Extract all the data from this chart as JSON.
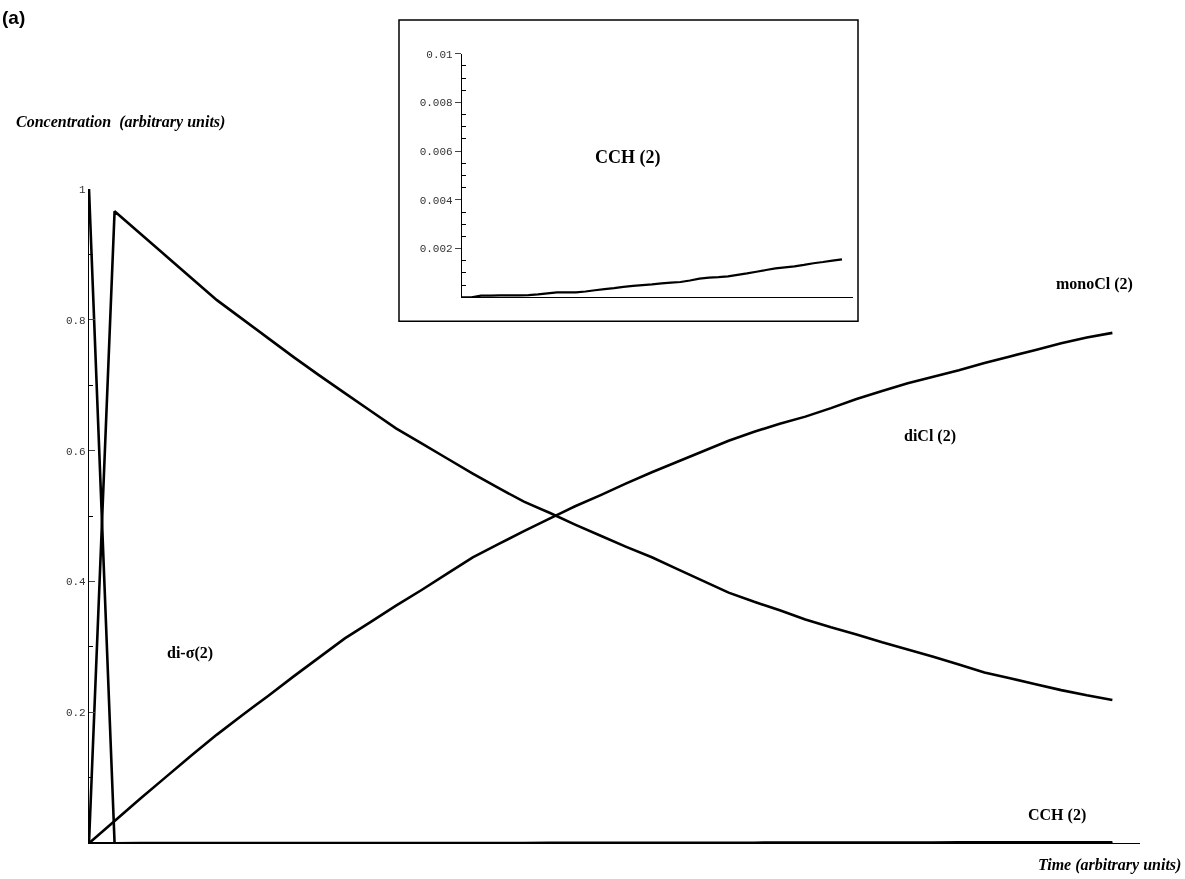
{
  "chart_data": [
    {
      "type": "line",
      "title": "(a)",
      "xlabel": "Time (arbitrary units)",
      "ylabel": "Concentration  (arbitrary units)",
      "categories": [
        null,
        null,
        null,
        null,
        null,
        null,
        null,
        null,
        null,
        null,
        null,
        null,
        null,
        null,
        null,
        null,
        null,
        null,
        null,
        null,
        null,
        null,
        null,
        null,
        null,
        null,
        null,
        null,
        null,
        null,
        null,
        null,
        null,
        null,
        null,
        null,
        null,
        null,
        null,
        null,
        null
      ],
      "ylim": [
        0,
        1
      ],
      "yticks": [
        {
          "value": 0.1,
          "label": null
        },
        0.2,
        {
          "value": 0.3,
          "label": null
        },
        0.4,
        {
          "value": 0.5,
          "label": null
        },
        0.6,
        {
          "value": 0.7,
          "label": null
        },
        0.8,
        {
          "value": 0.9,
          "label": null
        },
        1
      ],
      "tick_labels": "y",
      "grid": false,
      "marker": "none",
      "line_style": "solid",
      "series": [
        {
          "color": "#000000",
          "values": [
            0,
            0.966,
            0.932,
            0.898,
            0.864,
            0.83,
            0.801,
            0.772,
            0.743,
            0.715,
            0.688,
            0.661,
            0.634,
            0.611,
            0.588,
            0.565,
            0.543,
            0.522,
            0.505,
            0.487,
            0.47,
            0.453,
            0.437,
            0.419,
            0.401,
            0.383,
            0.369,
            0.356,
            0.342,
            0.33,
            0.319,
            0.307,
            0.296,
            0.285,
            0.273,
            0.261,
            0.252,
            0.243,
            0.234,
            0.226,
            0.219
          ]
        },
        {
          "color": "#000000",
          "values": [
            0,
            0.034,
            0.068,
            0.101,
            0.134,
            0.166,
            0.196,
            0.225,
            0.255,
            0.284,
            0.313,
            0.338,
            0.363,
            0.387,
            0.412,
            0.437,
            0.457,
            0.477,
            0.496,
            0.515,
            0.532,
            0.55,
            0.567,
            0.583,
            0.599,
            0.615,
            0.629,
            0.641,
            0.652,
            0.665,
            0.679,
            0.691,
            0.703,
            0.713,
            0.723,
            0.734,
            0.744,
            0.754,
            0.764,
            0.773,
            0.78
          ]
        },
        {
          "color": "#000000",
          "values": [
            1,
            0,
            0,
            0,
            0,
            0,
            0,
            0,
            0,
            0,
            0,
            0,
            0,
            0,
            0,
            0,
            0,
            0,
            0,
            0,
            0,
            0,
            0,
            0,
            0,
            0,
            0,
            0,
            0,
            0,
            0,
            0,
            0,
            0,
            0,
            0,
            0,
            0,
            0,
            0,
            0
          ]
        },
        {
          "color": "#000000",
          "values": [
            0,
            0,
            7e-05,
            7e-05,
            8e-05,
            8e-05,
            8e-05,
            9e-05,
            0.00012,
            0.00016,
            0.0002,
            0.0002,
            0.0002,
            0.00024,
            0.00029,
            0.00034,
            0.00038,
            0.00043,
            0.00047,
            0.0005,
            0.00053,
            0.00057,
            0.0006,
            0.00063,
            0.00069,
            0.00077,
            0.00081,
            0.00083,
            0.00086,
            0.00092,
            0.00098,
            0.00105,
            0.00112,
            0.00119,
            0.00123,
            0.00127,
            0.00133,
            0.0014,
            0.00145,
            0.00151,
            0.00156
          ]
        }
      ],
      "annotations": [
        "monoCl (2)",
        "diCl (2)",
        "CCH (2)",
        "di-σ(2)"
      ]
    },
    {
      "type": "line",
      "categories": [
        null,
        null,
        null,
        null,
        null,
        null,
        null,
        null,
        null,
        null,
        null,
        null,
        null,
        null,
        null,
        null,
        null,
        null,
        null,
        null,
        null,
        null,
        null,
        null,
        null,
        null,
        null,
        null,
        null,
        null,
        null,
        null,
        null,
        null,
        null,
        null,
        null,
        null,
        null,
        null,
        null
      ],
      "ylim": [
        0,
        0.01
      ],
      "yticks": [
        {
          "value": 0.0005,
          "label": null
        },
        {
          "value": 0.001,
          "label": null
        },
        {
          "value": 0.0015,
          "label": null
        },
        0.002,
        {
          "value": 0.0025,
          "label": null
        },
        {
          "value": 0.003,
          "label": null
        },
        {
          "value": 0.0035,
          "label": null
        },
        0.004,
        {
          "value": 0.0045,
          "label": null
        },
        {
          "value": 0.005,
          "label": null
        },
        {
          "value": 0.0055,
          "label": null
        },
        0.006,
        {
          "value": 0.0065,
          "label": null
        },
        {
          "value": 0.007,
          "label": null
        },
        {
          "value": 0.0075,
          "label": null
        },
        0.008,
        {
          "value": 0.0085,
          "label": null
        },
        {
          "value": 0.009,
          "label": null
        },
        {
          "value": 0.0095,
          "label": null
        },
        0.01
      ],
      "tick_labels": "y",
      "grid": false,
      "marker": "none",
      "line_style": "solid",
      "series": [
        {
          "color": "#000000",
          "values": [
            0,
            0,
            7e-05,
            7e-05,
            8e-05,
            8e-05,
            8e-05,
            9e-05,
            0.00012,
            0.00016,
            0.0002,
            0.0002,
            0.0002,
            0.00024,
            0.00029,
            0.00034,
            0.00038,
            0.00043,
            0.00047,
            0.0005,
            0.00053,
            0.00057,
            0.0006,
            0.00063,
            0.00069,
            0.00077,
            0.00081,
            0.00083,
            0.00086,
            0.00092,
            0.00098,
            0.00105,
            0.00112,
            0.00119,
            0.00123,
            0.00127,
            0.00133,
            0.0014,
            0.00145,
            0.00151,
            0.00156
          ]
        }
      ],
      "annotations": [
        "CCH (2)"
      ]
    }
  ]
}
